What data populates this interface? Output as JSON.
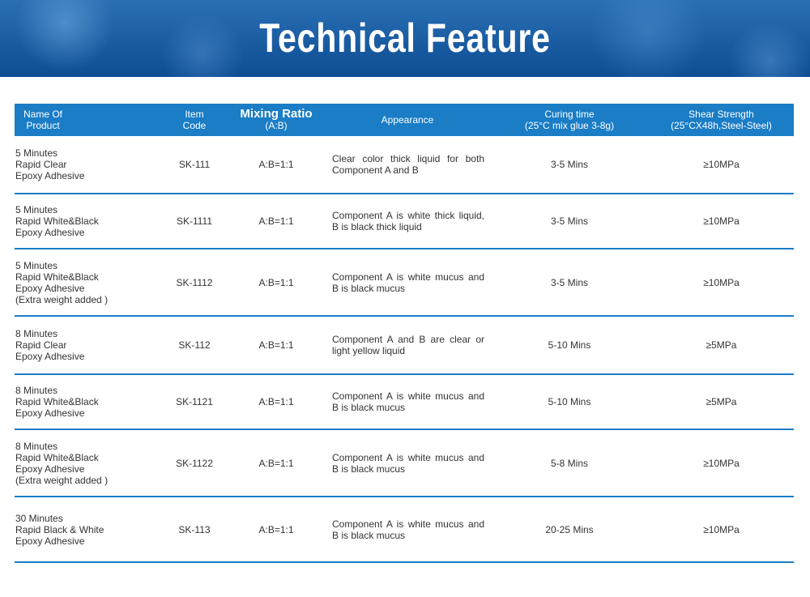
{
  "title": "Technical Feature",
  "header": {
    "name": [
      "Name Of",
      "Product"
    ],
    "code": [
      "Item",
      "Code"
    ],
    "ratio": [
      "Mixing Ratio",
      "(A:B)"
    ],
    "appearance": "Appearance",
    "curing": [
      "Curing time",
      "(25°C mix glue 3-8g)"
    ],
    "shear": [
      "Shear Strength",
      "(25°CX48h,Steel-Steel)"
    ]
  },
  "rows": [
    {
      "name": [
        "5 Minutes",
        "Rapid Clear",
        "Epoxy Adhesive"
      ],
      "code": "SK-111",
      "ratio": "A:B=1:1",
      "appearance": "Clear color thick liquid for both Component A and B",
      "curing": "3-5 Mins",
      "shear": "≥10MPa"
    },
    {
      "name": [
        "5 Minutes",
        "Rapid White&Black",
        "Epoxy Adhesive"
      ],
      "code": "SK-1111",
      "ratio": "A:B=1:1",
      "appearance": "Component A is white thick liquid, B is black thick liquid",
      "curing": "3-5 Mins",
      "shear": "≥10MPa"
    },
    {
      "name": [
        "5 Minutes",
        "Rapid White&Black",
        "Epoxy Adhesive",
        "(Extra weight added )"
      ],
      "code": "SK-1112",
      "ratio": "A:B=1:1",
      "appearance": "Component A is white mucus and B is black mucus",
      "curing": "3-5 Mins",
      "shear": "≥10MPa"
    },
    {
      "name": [
        "8 Minutes",
        "Rapid Clear",
        "Epoxy Adhesive"
      ],
      "code": "SK-112",
      "ratio": "A:B=1:1",
      "appearance": "Component A and B are clear or light yellow liquid",
      "curing": "5-10 Mins",
      "shear": "≥5MPa"
    },
    {
      "name": [
        "8 Minutes",
        "Rapid White&Black",
        "Epoxy Adhesive"
      ],
      "code": "SK-1121",
      "ratio": "A:B=1:1",
      "appearance": "Component A is white mucus and B is black mucus",
      "curing": "5-10 Mins",
      "shear": "≥5MPa"
    },
    {
      "name": [
        "8 Minutes",
        "Rapid White&Black",
        "Epoxy Adhesive",
        "(Extra weight added )"
      ],
      "code": "SK-1122",
      "ratio": "A:B=1:1",
      "appearance": "Component A is white mucus and B is black mucus",
      "curing": "5-8 Mins",
      "shear": "≥10MPa"
    },
    {
      "name": [
        "30 Minutes",
        "Rapid Black & White",
        "Epoxy Adhesive"
      ],
      "code": "SK-113",
      "ratio": "A:B=1:1",
      "appearance": "Component A is white mucus and B is black mucus",
      "curing": "20-25 Mins",
      "shear": "≥10MPa"
    }
  ]
}
